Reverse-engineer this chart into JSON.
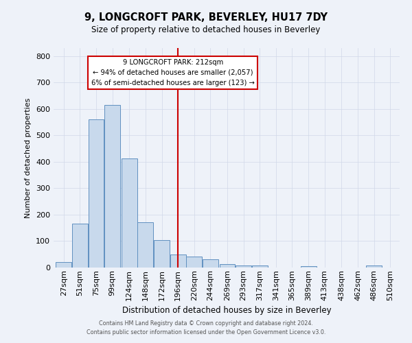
{
  "title": "9, LONGCROFT PARK, BEVERLEY, HU17 7DY",
  "subtitle": "Size of property relative to detached houses in Beverley",
  "xlabel": "Distribution of detached houses by size in Beverley",
  "ylabel": "Number of detached properties",
  "bar_color": "#c8d9ec",
  "bar_edge_color": "#6090c0",
  "background_color": "#eef2f9",
  "grid_color": "#d0d8e8",
  "annotation_box_edge": "#cc0000",
  "vline_color": "#cc0000",
  "vline_x": 208,
  "annotation_text_line1": "9 LONGCROFT PARK: 212sqm",
  "annotation_text_line2": "← 94% of detached houses are smaller (2,057)",
  "annotation_text_line3": "6% of semi-detached houses are larger (123) →",
  "bins_left": [
    27,
    51,
    75,
    99,
    124,
    148,
    172,
    196,
    220,
    244,
    269,
    293,
    317,
    341,
    365,
    389,
    413,
    438,
    462,
    486,
    510
  ],
  "bin_width": 24,
  "heights": [
    20,
    165,
    560,
    615,
    413,
    170,
    103,
    50,
    42,
    32,
    14,
    9,
    7,
    0,
    0,
    6,
    0,
    0,
    0,
    8,
    0
  ],
  "ylim": [
    0,
    830
  ],
  "yticks": [
    0,
    100,
    200,
    300,
    400,
    500,
    600,
    700,
    800
  ],
  "xlim_left": 24,
  "xlim_right": 536,
  "footer_line1": "Contains HM Land Registry data © Crown copyright and database right 2024.",
  "footer_line2": "Contains public sector information licensed under the Open Government Licence v3.0."
}
